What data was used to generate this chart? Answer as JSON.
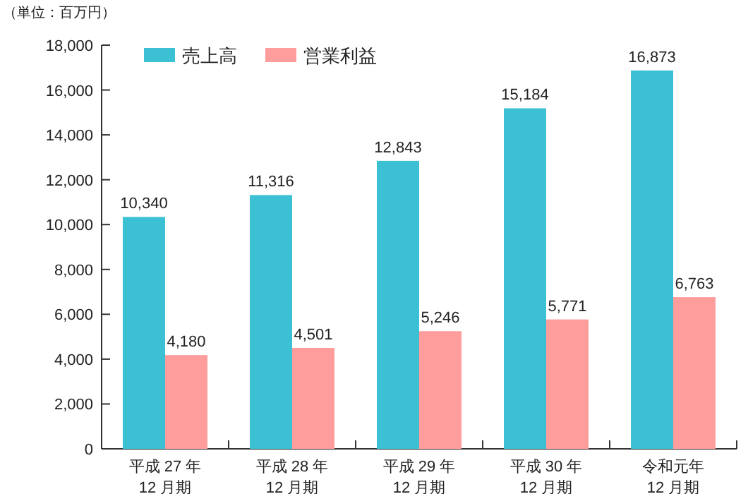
{
  "chart_data": {
    "type": "bar",
    "annotations": [
      "（単位：百万円）"
    ],
    "categories": [
      "平成 27 年\n12 月期",
      "平成 28 年\n12 月期",
      "平成 29 年\n12 月期",
      "平成 30 年\n12 月期",
      "令和元年\n12 月期"
    ],
    "series": [
      {
        "name": "売上高",
        "color": "#3cc0d4",
        "values": [
          10340,
          11316,
          12843,
          15184,
          16873
        ],
        "value_labels": [
          "10,340",
          "11,316",
          "12,843",
          "15,184",
          "16,873"
        ]
      },
      {
        "name": "営業利益",
        "color": "#ff9c9c",
        "values": [
          4180,
          4501,
          5246,
          5771,
          6763
        ],
        "value_labels": [
          "4,180",
          "4,501",
          "5,246",
          "5,771",
          "6,763"
        ]
      }
    ],
    "ylim": [
      0,
      18000
    ],
    "yticks": [
      {
        "value": 0,
        "label": "0"
      },
      {
        "value": 2000,
        "label": "2,000"
      },
      {
        "value": 4000,
        "label": "4,000"
      },
      {
        "value": 6000,
        "label": "6,000"
      },
      {
        "value": 8000,
        "label": "8,000"
      },
      {
        "value": 10000,
        "label": "10,000"
      },
      {
        "value": 12000,
        "label": "12,000"
      },
      {
        "value": 14000,
        "label": "14,000"
      },
      {
        "value": 16000,
        "label": "16,000"
      },
      {
        "value": 18000,
        "label": "18,000"
      }
    ],
    "legend": "top left",
    "grid": false
  }
}
